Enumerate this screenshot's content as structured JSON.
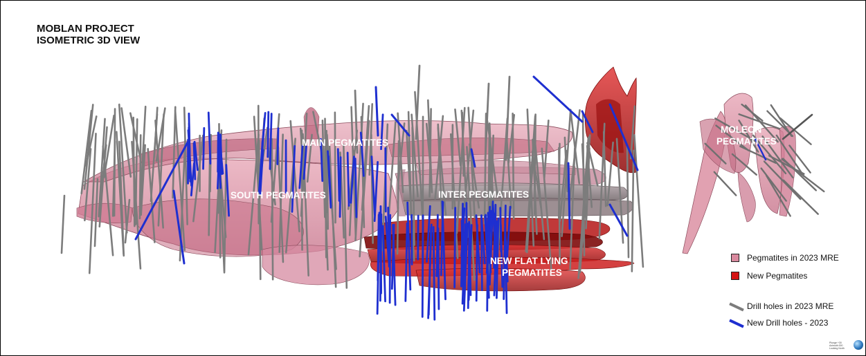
{
  "title": {
    "line1": "MOBLAN PROJECT",
    "line2": "ISOMETRIC 3D VIEW"
  },
  "labels": {
    "main": "MAIN PEGMATITES",
    "south": "SOUTH PEGMATITES",
    "inter": "INTER PEGMATITES",
    "moleon_1": "MOLEON",
    "moleon_2": "PEGMATITES",
    "flat_1": "NEW FLAT LYING",
    "flat_2": "PEGMATITES"
  },
  "legend": {
    "pegmatites_mre": "Pegmatites in 2023 MRE",
    "new_pegmatites": "New Pegmatites",
    "drill_mre": "Drill holes in 2023 MRE",
    "new_drill": "New Drill holes - 2023"
  },
  "view_note": {
    "line1": "Plunge +30",
    "line2": "Azimuth 000",
    "line3": "Looking North"
  },
  "colors": {
    "pink_fill": "#d9899e",
    "pink_edge": "#8a4a5b",
    "red_fill": "#c81e1e",
    "red_dark": "#7a0a0a",
    "grey_hole": "#7c7c7c",
    "blue_hole": "#1e2fd0"
  }
}
